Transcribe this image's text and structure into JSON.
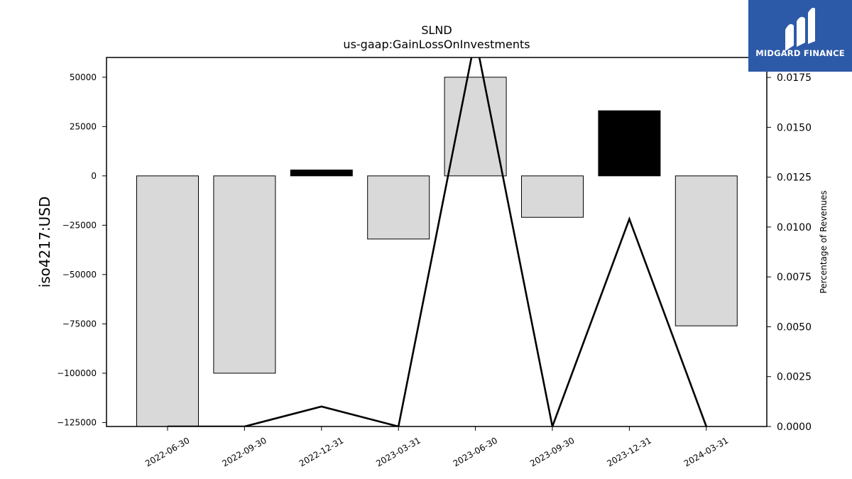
{
  "chart_data": {
    "type": "bar",
    "title": "SLND",
    "subtitle": "us-gaap:GainLossOnInvestments",
    "ylabel": "iso4217:USD",
    "y2label": "Percentage of Revenues",
    "categories": [
      "2022-06-30",
      "2022-09-30",
      "2022-12-31",
      "2023-03-31",
      "2023-06-30",
      "2023-09-30",
      "2023-12-31",
      "2024-03-31"
    ],
    "series": [
      {
        "axis": "left",
        "type": "bar",
        "values": [
          -127000,
          -100000,
          3000,
          -32000,
          50000,
          -21000,
          33000,
          -76000
        ],
        "fills": [
          "#d9d9d9",
          "#d9d9d9",
          "#000000",
          "#d9d9d9",
          "#d9d9d9",
          "#d9d9d9",
          "#000000",
          "#d9d9d9"
        ]
      },
      {
        "axis": "right",
        "type": "line",
        "values": [
          null,
          null,
          0.001,
          null,
          0.0195,
          null,
          0.0104,
          null
        ]
      }
    ],
    "ylim": [
      -127000,
      60000
    ],
    "yticks": [
      -125000,
      -100000,
      -75000,
      -50000,
      -25000,
      0,
      25000,
      50000
    ],
    "y2lim": [
      0,
      0.0185
    ],
    "y2ticks": [
      "0.0000",
      "0.0025",
      "0.0050",
      "0.0075",
      "0.0100",
      "0.0125",
      "0.0150",
      "0.0175"
    ],
    "grid": false,
    "line_color": "#000000",
    "bar_edge_color": "#000000"
  },
  "logo": {
    "text": "MIDGARD FINANCE",
    "background": "#2d5aa8"
  }
}
